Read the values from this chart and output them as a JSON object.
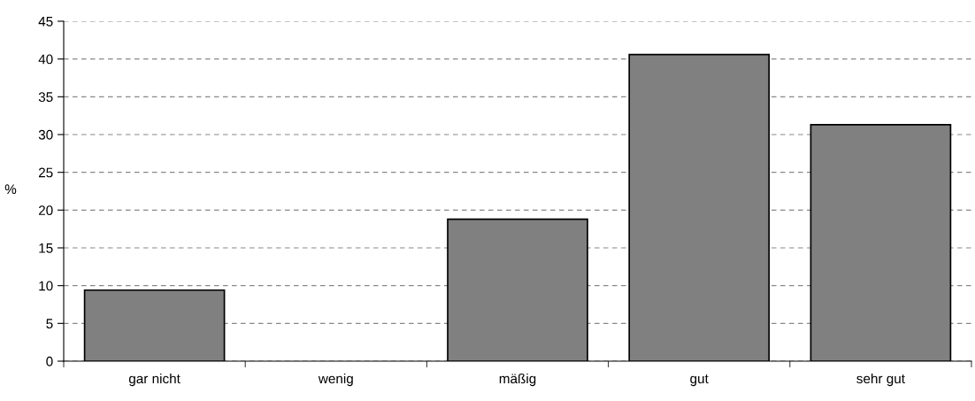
{
  "chart_data": {
    "type": "bar",
    "ylabel": "%",
    "categories": [
      "gar nicht",
      "wenig",
      "mäßig",
      "gut",
      "sehr gut"
    ],
    "values": [
      9.4,
      0,
      18.8,
      40.6,
      31.3
    ],
    "color": "#808080",
    "ylim": [
      0,
      45
    ],
    "yticks": [
      0,
      5,
      10,
      15,
      20,
      25,
      30,
      35,
      40,
      45
    ],
    "grid": "y",
    "legend": false
  }
}
